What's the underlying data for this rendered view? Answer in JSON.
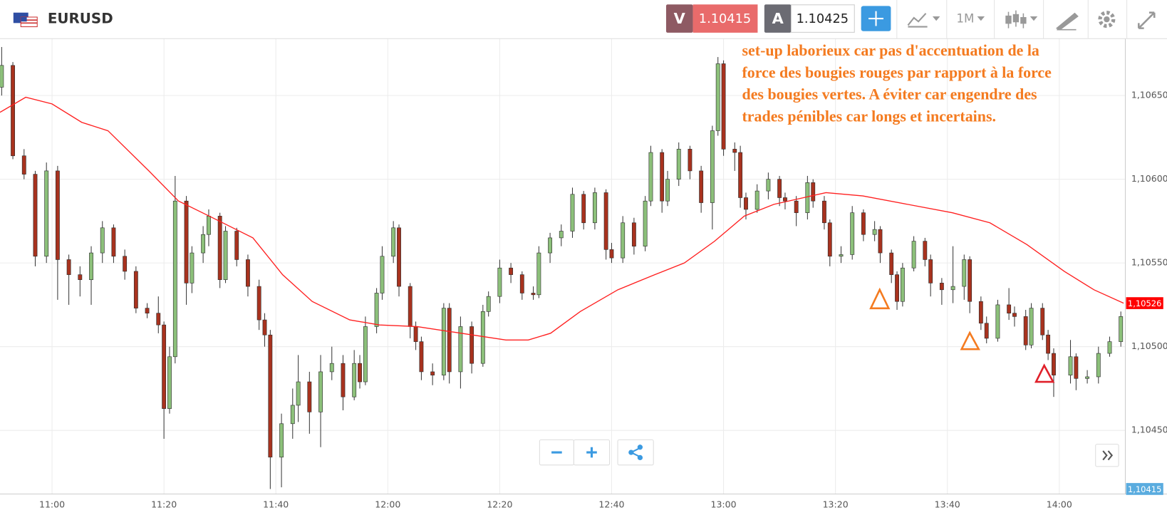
{
  "header": {
    "symbol": "EURUSD",
    "sell_label": "V",
    "sell_price": 1.10415,
    "buy_label": "A",
    "buy_price": 1.10425,
    "timeframe": "1M"
  },
  "chart_data": {
    "type": "candlestick",
    "annotation": [
      "set-up laborieux car pas d'accentuation de la",
      "force des bougies rouges par rapport à la force",
      "des bougies vertes. A éviter car engendre des",
      "trades pénibles car longs et incertains."
    ],
    "ylim": [
      1.10412,
      1.10684
    ],
    "yticks": [
      {
        "value": 1.1045,
        "label": "1,10450"
      },
      {
        "value": 1.105,
        "label": "1,10500"
      },
      {
        "value": 1.1055,
        "label": "1,10550"
      },
      {
        "value": 1.106,
        "label": "1,10600"
      },
      {
        "value": 1.1065,
        "label": "1,10650"
      }
    ],
    "xlim": [
      -9.3,
      191.8
    ],
    "xticks": [
      {
        "value": 0,
        "label": "11:00"
      },
      {
        "value": 20,
        "label": "11:20"
      },
      {
        "value": 40,
        "label": "11:40"
      },
      {
        "value": 60,
        "label": "12:00"
      },
      {
        "value": 80,
        "label": "12:20"
      },
      {
        "value": 100,
        "label": "12:40"
      },
      {
        "value": 120,
        "label": "13:00"
      },
      {
        "value": 140,
        "label": "13:20"
      },
      {
        "value": 160,
        "label": "13:40"
      },
      {
        "value": 180,
        "label": "14:00"
      }
    ],
    "grid": true,
    "candles": {
      "up_color": "#8cc07a",
      "down_color": "#a8321e",
      "x": [
        -9,
        -7,
        -5,
        -3,
        -1,
        1,
        3,
        5,
        7,
        9,
        11,
        13,
        15,
        17,
        19,
        20,
        21,
        22,
        24,
        25,
        27,
        28,
        30,
        31,
        33,
        35,
        37,
        38,
        39,
        41,
        43,
        44,
        46,
        48,
        50,
        52,
        54,
        55,
        56,
        58,
        59,
        61,
        62,
        64,
        65,
        66,
        68,
        70,
        71,
        73,
        75,
        77,
        78,
        80,
        82,
        84,
        86,
        87,
        89,
        91,
        93,
        95,
        97,
        99,
        100,
        102,
        104,
        106,
        107,
        109,
        110,
        112,
        114,
        116,
        118,
        119,
        120,
        122,
        123,
        124,
        126,
        128,
        130,
        131,
        133,
        135,
        136,
        138,
        139,
        141,
        143,
        145,
        147,
        148,
        150,
        151,
        152,
        154,
        156,
        157,
        159,
        161,
        163,
        164,
        166,
        167,
        169,
        171,
        172,
        174,
        175,
        177,
        178,
        179,
        182,
        183,
        185,
        187,
        189,
        191
      ],
      "open": [
        1.10655,
        1.10668,
        1.10614,
        1.10603,
        1.10554,
        1.10605,
        1.10552,
        1.10543,
        1.1054,
        1.10556,
        1.10571,
        1.10554,
        1.10545,
        1.10523,
        1.1052,
        1.10513,
        1.10463,
        1.10494,
        1.10587,
        1.10538,
        1.10556,
        1.10567,
        1.10578,
        1.1054,
        1.10569,
        1.10552,
        1.10536,
        1.10516,
        1.10507,
        1.10434,
        1.10454,
        1.10465,
        1.10479,
        1.10461,
        1.10485,
        1.1049,
        1.1047,
        1.1049,
        1.10479,
        1.10512,
        1.10532,
        1.10554,
        1.10571,
        1.10536,
        1.10512,
        1.10503,
        1.10485,
        1.10483,
        1.10523,
        1.10485,
        1.10512,
        1.1049,
        1.10521,
        1.1053,
        1.10547,
        1.10543,
        1.10532,
        1.10531,
        1.10556,
        1.10565,
        1.10569,
        1.10591,
        1.10574,
        1.10592,
        1.10558,
        1.10553,
        1.10574,
        1.1056,
        1.10587,
        1.10616,
        1.10587,
        1.106,
        1.10618,
        1.10605,
        1.10586,
        1.10629,
        1.10669,
        1.10618,
        1.10616,
        1.10589,
        1.10582,
        1.10593,
        1.106,
        1.10589,
        1.10587,
        1.1058,
        1.10598,
        1.10587,
        1.10574,
        1.10554,
        1.10555,
        1.1058,
        1.10567,
        1.1057,
        1.10556,
        1.10543,
        1.10527,
        1.10547,
        1.10563,
        1.10552,
        1.10538,
        1.10534,
        1.10536,
        1.10552,
        1.10527,
        1.10514,
        1.10505,
        1.10525,
        1.1052,
        1.10518,
        1.10501,
        1.10523,
        1.10507,
        1.10496,
        1.10483,
        1.10494,
        1.10481,
        1.10482,
        1.10496,
        1.10503
      ],
      "high": [
        1.10679,
        1.1067,
        1.10618,
        1.10605,
        1.1061,
        1.10608,
        1.10555,
        1.10548,
        1.1056,
        1.10575,
        1.10573,
        1.10558,
        1.10548,
        1.10526,
        1.1053,
        1.10515,
        1.105,
        1.10602,
        1.1059,
        1.1056,
        1.10572,
        1.10582,
        1.1058,
        1.10572,
        1.10571,
        1.10555,
        1.1054,
        1.1052,
        1.1051,
        1.1046,
        1.10475,
        1.10495,
        1.10485,
        1.10495,
        1.105,
        1.10495,
        1.10498,
        1.10495,
        1.10518,
        1.10535,
        1.1056,
        1.10575,
        1.10573,
        1.10538,
        1.10515,
        1.10506,
        1.1049,
        1.10526,
        1.10526,
        1.10518,
        1.10515,
        1.10525,
        1.10533,
        1.10552,
        1.1055,
        1.10545,
        1.10536,
        1.1056,
        1.10568,
        1.10573,
        1.10595,
        1.10593,
        1.10595,
        1.10594,
        1.10562,
        1.10578,
        1.10577,
        1.1059,
        1.1062,
        1.10618,
        1.10605,
        1.10622,
        1.1062,
        1.10608,
        1.10632,
        1.10673,
        1.10671,
        1.10622,
        1.1062,
        1.10592,
        1.10597,
        1.10604,
        1.10602,
        1.10592,
        1.1059,
        1.10602,
        1.106,
        1.1059,
        1.10576,
        1.1056,
        1.10584,
        1.10582,
        1.10575,
        1.10572,
        1.10558,
        1.10545,
        1.1055,
        1.10566,
        1.10565,
        1.10555,
        1.10541,
        1.1056,
        1.10555,
        1.10554,
        1.1053,
        1.10518,
        1.10528,
        1.10535,
        1.10524,
        1.10522,
        1.10526,
        1.10526,
        1.1051,
        1.10499,
        1.10504,
        1.10496,
        1.10486,
        1.105,
        1.10506,
        1.10521
      ],
      "low": [
        1.1065,
        1.10612,
        1.106,
        1.10548,
        1.1055,
        1.10528,
        1.10525,
        1.1053,
        1.10525,
        1.1055,
        1.1055,
        1.1054,
        1.1052,
        1.10517,
        1.10508,
        1.10445,
        1.1046,
        1.1049,
        1.10525,
        1.10532,
        1.1055,
        1.1056,
        1.10535,
        1.10538,
        1.10548,
        1.1053,
        1.1051,
        1.105,
        1.10415,
        1.10416,
        1.10445,
        1.10455,
        1.10448,
        1.1044,
        1.1048,
        1.10462,
        1.10468,
        1.10475,
        1.10477,
        1.10508,
        1.10528,
        1.1055,
        1.1053,
        1.10505,
        1.10498,
        1.1048,
        1.10477,
        1.1048,
        1.10478,
        1.10475,
        1.10484,
        1.10488,
        1.10518,
        1.10526,
        1.10538,
        1.10528,
        1.10528,
        1.10529,
        1.1055,
        1.1056,
        1.10565,
        1.1057,
        1.1057,
        1.10552,
        1.1055,
        1.1055,
        1.10555,
        1.10557,
        1.10584,
        1.1058,
        1.10584,
        1.10596,
        1.106,
        1.1058,
        1.1057,
        1.10626,
        1.10614,
        1.10605,
        1.10583,
        1.10576,
        1.1058,
        1.10588,
        1.10584,
        1.10582,
        1.10572,
        1.10576,
        1.10583,
        1.1057,
        1.10548,
        1.1055,
        1.10552,
        1.10563,
        1.10563,
        1.1055,
        1.10538,
        1.10522,
        1.10524,
        1.10545,
        1.10548,
        1.1053,
        1.10525,
        1.10526,
        1.10528,
        1.1052,
        1.1051,
        1.10502,
        1.10503,
        1.10516,
        1.10512,
        1.10498,
        1.10499,
        1.10504,
        1.10492,
        1.1047,
        1.10478,
        1.10474,
        1.10478,
        1.10478,
        1.10494,
        1.105
      ],
      "close": [
        1.10668,
        1.10614,
        1.10603,
        1.10554,
        1.10605,
        1.10552,
        1.10543,
        1.1054,
        1.10556,
        1.10571,
        1.10554,
        1.10545,
        1.10523,
        1.1052,
        1.10513,
        1.10463,
        1.10494,
        1.10587,
        1.10538,
        1.10556,
        1.10567,
        1.10578,
        1.1054,
        1.10569,
        1.10552,
        1.10536,
        1.10516,
        1.10507,
        1.10434,
        1.10454,
        1.10465,
        1.10479,
        1.10461,
        1.10485,
        1.1049,
        1.1047,
        1.1049,
        1.10479,
        1.10512,
        1.10532,
        1.10554,
        1.10571,
        1.10536,
        1.10512,
        1.10503,
        1.10485,
        1.10483,
        1.10523,
        1.10485,
        1.10512,
        1.1049,
        1.10521,
        1.1053,
        1.10547,
        1.10543,
        1.10532,
        1.10531,
        1.10556,
        1.10565,
        1.10569,
        1.10591,
        1.10574,
        1.10592,
        1.10558,
        1.10553,
        1.10574,
        1.1056,
        1.10587,
        1.10616,
        1.10587,
        1.106,
        1.10618,
        1.10605,
        1.10586,
        1.10629,
        1.10669,
        1.10618,
        1.10616,
        1.10589,
        1.10582,
        1.10593,
        1.106,
        1.10589,
        1.10587,
        1.1058,
        1.10598,
        1.10587,
        1.10574,
        1.10554,
        1.10555,
        1.1058,
        1.10567,
        1.1057,
        1.10556,
        1.10543,
        1.10527,
        1.10547,
        1.10563,
        1.10552,
        1.10538,
        1.10534,
        1.10536,
        1.10552,
        1.10527,
        1.10514,
        1.10505,
        1.10525,
        1.1052,
        1.10518,
        1.10501,
        1.10523,
        1.10507,
        1.10496,
        1.10483,
        1.10494,
        1.10481,
        1.10482,
        1.10496,
        1.10503,
        1.10518
      ]
    },
    "moving_average": {
      "color": "#ff2020",
      "x": [
        -9.3,
        -4.7,
        0,
        5.3,
        10,
        17.3,
        22.6,
        29.3,
        35.9,
        41.2,
        46.5,
        53.2,
        58.5,
        65.2,
        73.1,
        81.1,
        85.1,
        89.1,
        94.4,
        101.1,
        107.7,
        113,
        118.4,
        123.7,
        129,
        134.3,
        138.3,
        144.9,
        152.9,
        160.9,
        167.6,
        174.2,
        180.9,
        186.2,
        191.5
      ],
      "values": [
        1.1064,
        1.10649,
        1.10645,
        1.10634,
        1.10629,
        1.10605,
        1.10587,
        1.10576,
        1.10565,
        1.10543,
        1.10527,
        1.10516,
        1.10513,
        1.10512,
        1.10508,
        1.10504,
        1.10504,
        1.10508,
        1.10521,
        1.10534,
        1.10543,
        1.1055,
        1.10563,
        1.10578,
        1.10585,
        1.10589,
        1.10592,
        1.1059,
        1.10585,
        1.1058,
        1.10574,
        1.10561,
        1.10545,
        1.10534,
        1.10526
      ]
    },
    "price_tags": [
      {
        "value": 1.10526,
        "label": "1,10526",
        "color": "#ff0000"
      },
      {
        "value": 1.10415,
        "label": "1,10415",
        "color": "#5aacdf"
      }
    ]
  }
}
